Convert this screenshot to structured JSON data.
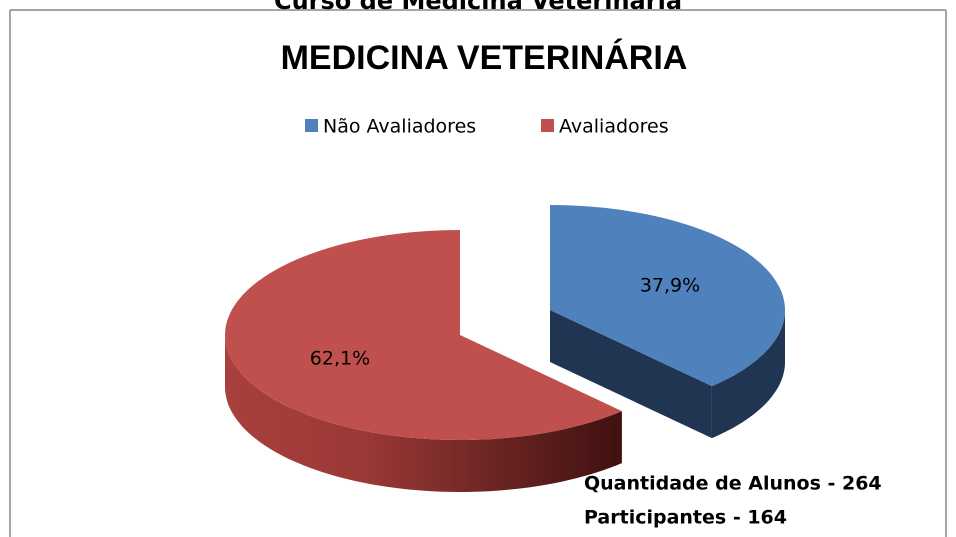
{
  "header": {
    "title": "Curso de Medicina Veterinária"
  },
  "chart_data": {
    "type": "pie",
    "title": "MEDICINA VETERINÁRIA",
    "categories": [
      "Não Avaliadores",
      "Avaliadores"
    ],
    "values": [
      37.9,
      62.1
    ],
    "value_labels": [
      "37,9%",
      "62,1%"
    ],
    "colors": [
      "#4f81bd",
      "#c0504d"
    ],
    "legend": "top",
    "annotations": [
      "Quantidade de Alunos - 264",
      "Participantes - 164"
    ]
  }
}
